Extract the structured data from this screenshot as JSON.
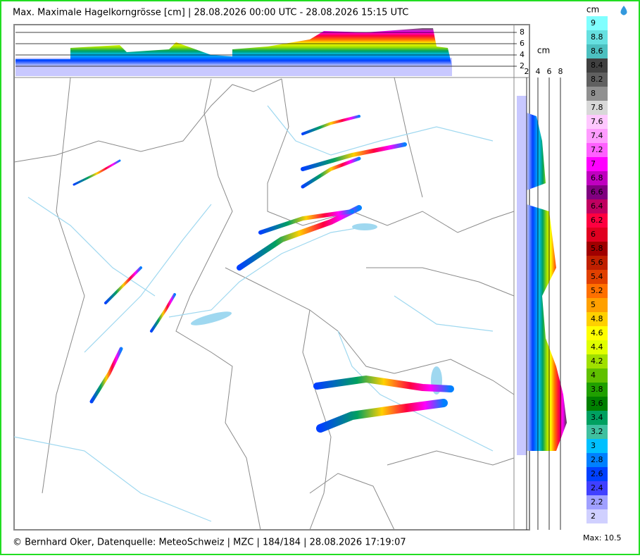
{
  "header": {
    "title": "Max. Maximale Hagelkorngrösse [cm] | 28.08.2026 00:00 UTC - 28.08.2026 15:15 UTC"
  },
  "top_profile": {
    "ticks": [
      2,
      4,
      6,
      8
    ],
    "unit": "cm"
  },
  "side_profile": {
    "ticks": [
      2,
      4,
      6,
      8
    ]
  },
  "legend": {
    "unit": "cm",
    "labels": [
      9,
      8.8,
      8.6,
      8.4,
      8.2,
      8,
      7.8,
      7.6,
      7.4,
      7.2,
      7,
      6.8,
      6.6,
      6.4,
      6.2,
      6,
      5.8,
      5.6,
      5.4,
      5.2,
      5,
      4.8,
      4.6,
      4.4,
      4.2,
      4,
      3.8,
      3.6,
      3.4,
      3.2,
      3,
      2.8,
      2.6,
      2.4,
      2.2,
      2
    ],
    "colors": [
      "#80ffff",
      "#66e0e0",
      "#4cc0c0",
      "#404040",
      "#606060",
      "#909090",
      "#d8d8d8",
      "#ffc8ff",
      "#ff9cff",
      "#ff60ff",
      "#ff00ff",
      "#c000c0",
      "#800080",
      "#c00060",
      "#ff0040",
      "#e00020",
      "#a00000",
      "#c02000",
      "#e04000",
      "#ff7000",
      "#ffa000",
      "#ffd000",
      "#ffff00",
      "#e0ff00",
      "#a0e000",
      "#60c000",
      "#20a000",
      "#008000",
      "#00a060",
      "#40c0a0",
      "#00c0ff",
      "#0080ff",
      "#0040ff",
      "#4040ff",
      "#a0a0ff",
      "#d0d0ff"
    ],
    "max": "Max: 10.5"
  },
  "footer": "© Bernhard Oker, Datenquelle: MeteoSchweiz | MZC | 184/184 | 28.08.2026 17:19:07"
}
